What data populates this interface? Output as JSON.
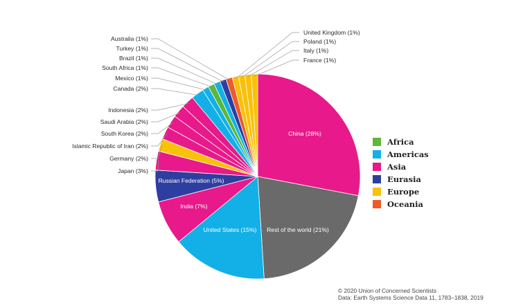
{
  "chart_data": {
    "type": "pie",
    "title": "",
    "slices": [
      {
        "label": "China (28%)",
        "value": 28,
        "region": "Asia"
      },
      {
        "label": "Rest of the world (21%)",
        "value": 21,
        "region": "Other"
      },
      {
        "label": "United States (15%)",
        "value": 15,
        "region": "Americas"
      },
      {
        "label": "India (7%)",
        "value": 7,
        "region": "Asia"
      },
      {
        "label": "Russian Federation (5%)",
        "value": 5,
        "region": "Eurasia"
      },
      {
        "label": "Japan (3%)",
        "value": 3,
        "region": "Asia"
      },
      {
        "label": "Germany (2%)",
        "value": 2,
        "region": "Europe"
      },
      {
        "label": "Islamic Republic of Iran (2%)",
        "value": 2,
        "region": "Asia"
      },
      {
        "label": "South Korea (2%)",
        "value": 2,
        "region": "Asia"
      },
      {
        "label": "Saudi Arabia (2%)",
        "value": 2,
        "region": "Asia"
      },
      {
        "label": "Indonesia (2%)",
        "value": 2,
        "region": "Asia"
      },
      {
        "label": "Canada (2%)",
        "value": 2,
        "region": "Americas"
      },
      {
        "label": "Mexico (1%)",
        "value": 1,
        "region": "Americas"
      },
      {
        "label": "South Africa (1%)",
        "value": 1,
        "region": "Africa"
      },
      {
        "label": "Brazil (1%)",
        "value": 1,
        "region": "Americas"
      },
      {
        "label": "Turkey (1%)",
        "value": 1,
        "region": "Eurasia"
      },
      {
        "label": "Australia (1%)",
        "value": 1,
        "region": "Oceania"
      },
      {
        "label": "United Kingdom (1%)",
        "value": 1,
        "region": "Europe"
      },
      {
        "label": "Poland (1%)",
        "value": 1,
        "region": "Europe"
      },
      {
        "label": "Italy (1%)",
        "value": 1,
        "region": "Europe"
      },
      {
        "label": "France (1%)",
        "value": 1,
        "region": "Europe"
      }
    ],
    "region_colors": {
      "Africa": "#5cb83a",
      "Americas": "#12b0e6",
      "Asia": "#e8198a",
      "Eurasia": "#2e3ea0",
      "Europe": "#f9c10a",
      "Oceania": "#f05a28",
      "Other": "#6a6a6a"
    },
    "legend": {
      "placement": "right",
      "entries": [
        "Africa",
        "Americas",
        "Asia",
        "Eurasia",
        "Europe",
        "Oceania"
      ]
    }
  },
  "credits": {
    "line1": "© 2020 Union of Concerned Scientists",
    "line2": "Data: Earth Systems Science Data 11, 1783–1838, 2019"
  }
}
